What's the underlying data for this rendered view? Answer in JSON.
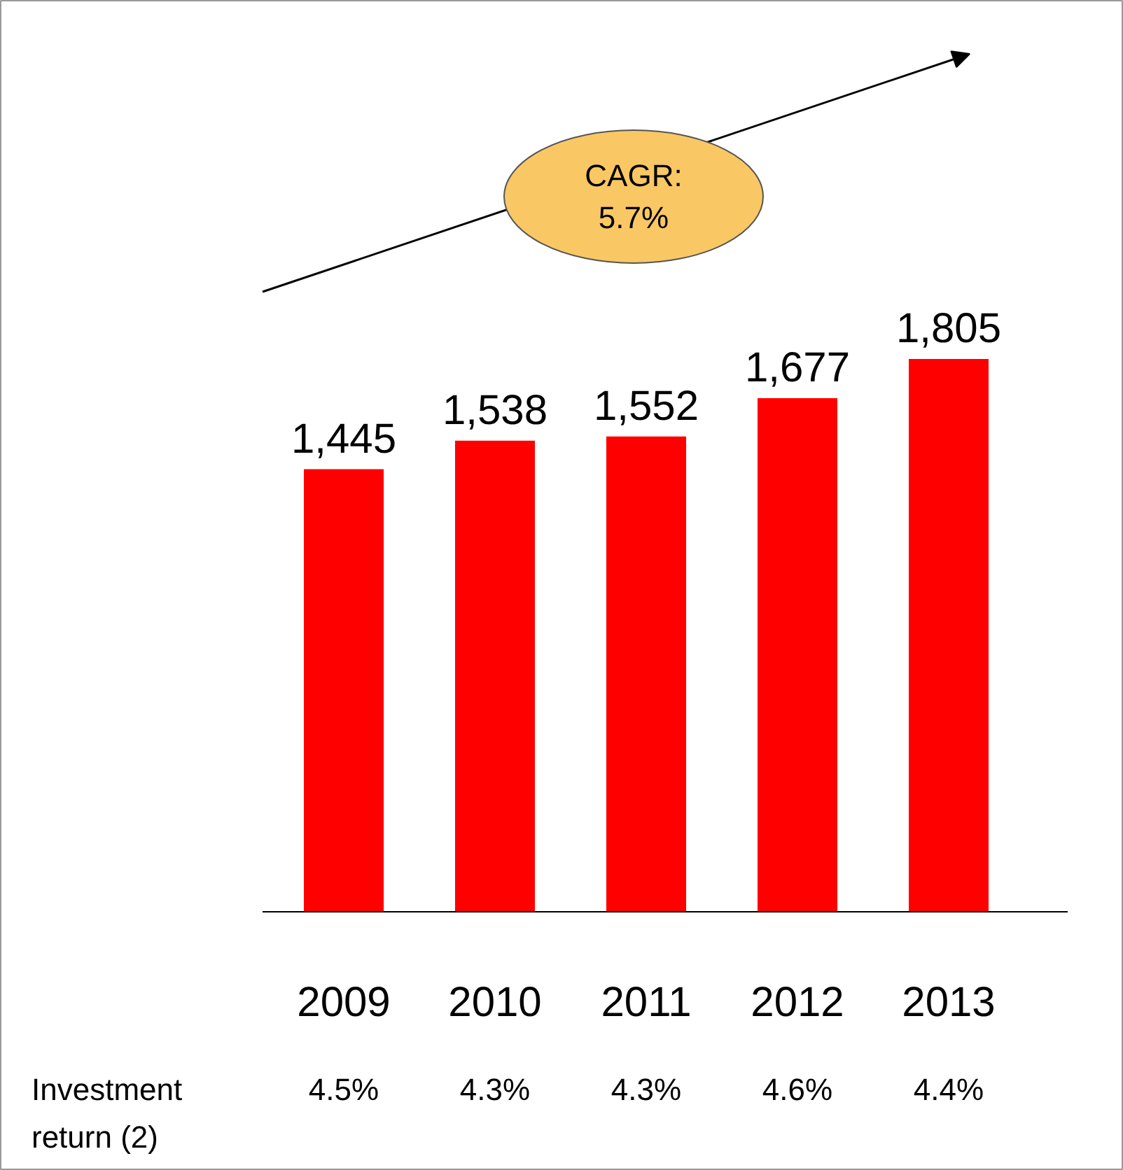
{
  "chart_data": {
    "type": "bar",
    "categories": [
      "2009",
      "2010",
      "2011",
      "2012",
      "2013"
    ],
    "values": [
      1445,
      1538,
      1552,
      1677,
      1805
    ],
    "value_labels": [
      "1,445",
      "1,538",
      "1,552",
      "1,677",
      "1,805"
    ],
    "color": "#ff0000",
    "annotations": [
      "CAGR:\n5.7%",
      "Investment\nreturn (2)",
      "4.5%",
      "4.3%",
      "4.3%",
      "4.6%",
      "4.4%"
    ]
  }
}
